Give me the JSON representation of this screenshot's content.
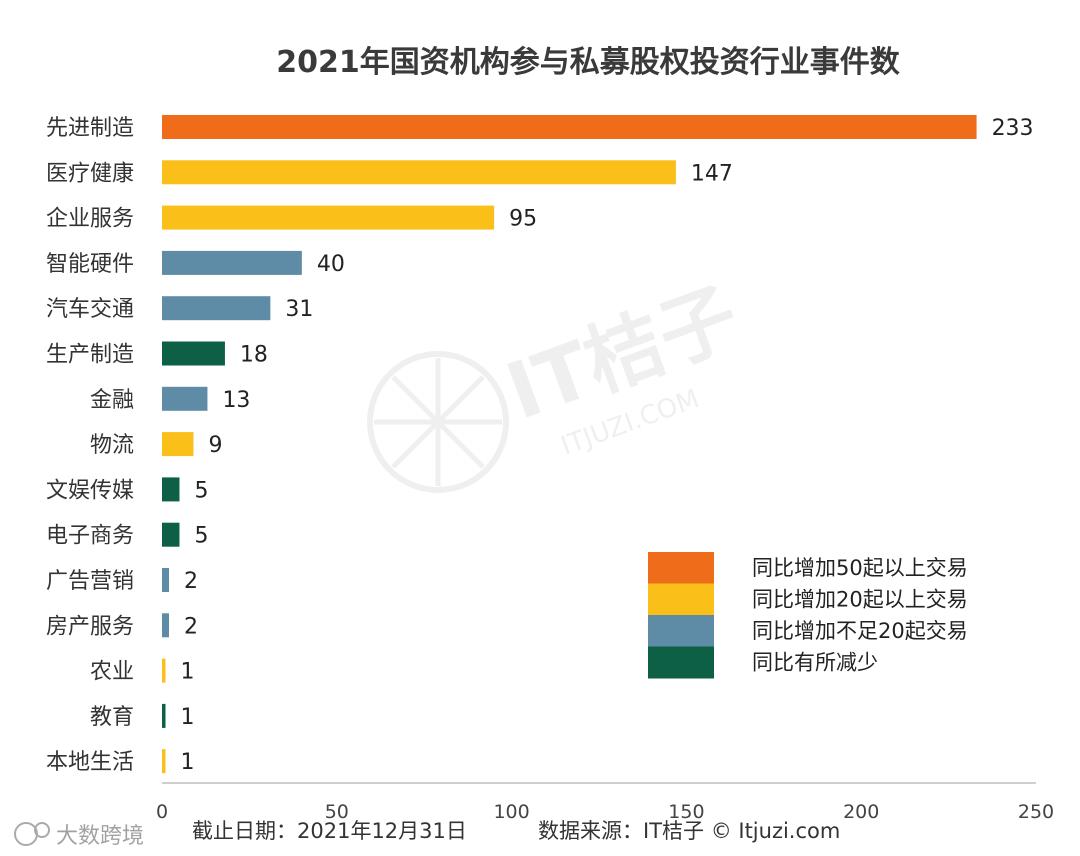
{
  "chart_data": {
    "type": "bar",
    "orientation": "horizontal",
    "title": "2021年国资机构参与私募股权投资行业事件数",
    "xlabel": "",
    "ylabel": "",
    "xlim": [
      0,
      250
    ],
    "x_ticks": [
      0,
      50,
      100,
      150,
      200,
      250
    ],
    "grid": false,
    "legend_position": "bottom-right",
    "categories": [
      "先进制造",
      "医疗健康",
      "企业服务",
      "智能硬件",
      "汽车交通",
      "生产制造",
      "金融",
      "物流",
      "文娱传媒",
      "电子商务",
      "广告营销",
      "房产服务",
      "农业",
      "教育",
      "本地生活"
    ],
    "values": [
      233,
      147,
      95,
      40,
      31,
      18,
      13,
      9,
      5,
      5,
      2,
      2,
      1,
      1,
      1
    ],
    "value_group": [
      0,
      1,
      1,
      2,
      2,
      3,
      2,
      1,
      3,
      3,
      2,
      2,
      1,
      3,
      1
    ],
    "legend": [
      {
        "label": "同比增加50起以上交易",
        "color": "#EF6C1A"
      },
      {
        "label": "同比增加20起以上交易",
        "color": "#FBBF1A"
      },
      {
        "label": "同比增加不足20起交易",
        "color": "#5E8CA6"
      },
      {
        "label": "同比有所减少",
        "color": "#0D5F45"
      }
    ]
  },
  "footer": {
    "date_text": "截止日期：2021年12月31日",
    "source_text": "数据来源：IT桔子 © Itjuzi.com"
  },
  "watermarks": {
    "corner_text": "大数跨境",
    "center_text": "IT桔子",
    "center_sub": "ITJUZI.COM"
  }
}
